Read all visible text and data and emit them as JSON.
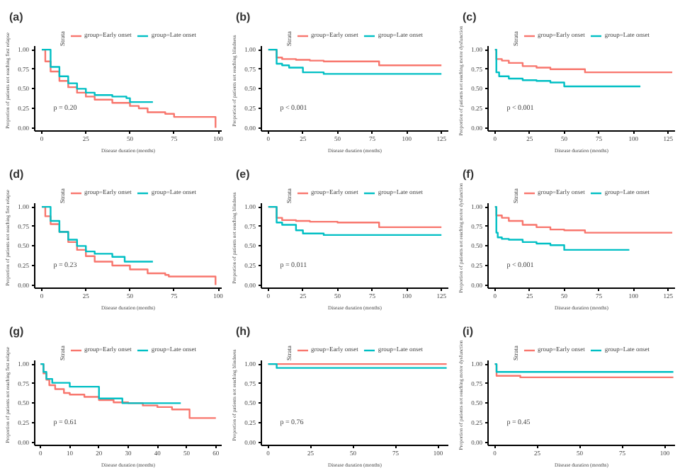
{
  "chart_data": [
    {
      "type": "step",
      "title": "(a)",
      "xlabel": "Disease duration (months)",
      "ylabel": "Proportion of patients not reaching first relapse",
      "legend_title": "Strata",
      "legend": "top",
      "grid": false,
      "line_style": "solid",
      "annotations": [
        "p = 0.20"
      ],
      "xlim": [
        -4,
        102
      ],
      "xticks": [
        0,
        25,
        50,
        75,
        100
      ],
      "ylim": [
        -0.04,
        1.04
      ],
      "yticks": [
        {
          "value": 0,
          "label": "0.00"
        },
        {
          "value": 0.25,
          "label": "0.25"
        },
        {
          "value": 0.5,
          "label": "0.50"
        },
        {
          "value": 0.75,
          "label": "0.75"
        },
        {
          "value": 1,
          "label": "1.00"
        }
      ],
      "series": [
        {
          "name": "group=Early onset",
          "color": "#f8766d",
          "x": [
            0,
            2,
            5,
            10,
            15,
            20,
            25,
            30,
            40,
            50,
            55,
            60,
            70,
            75,
            98,
            98.5
          ],
          "values": [
            1,
            0.85,
            0.72,
            0.6,
            0.52,
            0.45,
            0.4,
            0.36,
            0.32,
            0.28,
            0.25,
            0.2,
            0.18,
            0.14,
            0.14,
            0
          ]
        },
        {
          "name": "group=Late onset",
          "color": "#00bfc4",
          "x": [
            0,
            5,
            10,
            15,
            20,
            25,
            30,
            40,
            48,
            50,
            63
          ],
          "values": [
            1,
            0.78,
            0.66,
            0.57,
            0.5,
            0.45,
            0.42,
            0.4,
            0.38,
            0.33,
            0.33
          ]
        }
      ]
    },
    {
      "type": "step",
      "title": "(b)",
      "xlabel": "Disease duration (months)",
      "ylabel": "Proportion of patients not reaching blindness",
      "legend_title": "Strata",
      "legend": "top",
      "grid": false,
      "line_style": "solid",
      "annotations": [
        "p < 0.001"
      ],
      "xlim": [
        -5,
        130
      ],
      "xticks": [
        0,
        25,
        50,
        75,
        100,
        125
      ],
      "ylim": [
        -0.04,
        1.04
      ],
      "yticks": [
        {
          "value": 0,
          "label": "0.00"
        },
        {
          "value": 0.25,
          "label": "0.25"
        },
        {
          "value": 0.5,
          "label": "0.50"
        },
        {
          "value": 0.75,
          "label": "0.75"
        },
        {
          "value": 1,
          "label": "1.00"
        }
      ],
      "series": [
        {
          "name": "group=Early onset",
          "color": "#f8766d",
          "x": [
            0,
            6,
            10,
            20,
            30,
            40,
            60,
            80,
            125
          ],
          "values": [
            1,
            0.9,
            0.88,
            0.87,
            0.86,
            0.85,
            0.85,
            0.8,
            0.8
          ]
        },
        {
          "name": "group=Late onset",
          "color": "#00bfc4",
          "x": [
            0,
            6,
            10,
            15,
            25,
            40,
            125
          ],
          "values": [
            1,
            0.82,
            0.8,
            0.77,
            0.71,
            0.69,
            0.69
          ]
        }
      ]
    },
    {
      "type": "step",
      "title": "(c)",
      "xlabel": "Disease duration (months)",
      "ylabel": "Proportion of patients not reaching motor dysfunction",
      "legend_title": "Strata",
      "legend": "top",
      "grid": false,
      "line_style": "solid",
      "annotations": [
        "p < 0.001"
      ],
      "xlim": [
        -5,
        130
      ],
      "xticks": [
        0,
        25,
        50,
        75,
        100,
        125
      ],
      "ylim": [
        -0.04,
        1.04
      ],
      "yticks": [
        {
          "value": 0,
          "label": "0.00"
        },
        {
          "value": 0.25,
          "label": "0.25"
        },
        {
          "value": 0.5,
          "label": "0.50"
        },
        {
          "value": 0.75,
          "label": "0.75"
        },
        {
          "value": 1,
          "label": "1.00"
        }
      ],
      "series": [
        {
          "name": "group=Early onset",
          "color": "#f8766d",
          "x": [
            0,
            1,
            5,
            10,
            20,
            30,
            40,
            50,
            65,
            128
          ],
          "values": [
            1,
            0.88,
            0.86,
            0.83,
            0.79,
            0.77,
            0.75,
            0.75,
            0.71,
            0.71
          ]
        },
        {
          "name": "group=Late onset",
          "color": "#00bfc4",
          "x": [
            0,
            1,
            3,
            10,
            20,
            30,
            40,
            50,
            105
          ],
          "values": [
            1,
            0.71,
            0.66,
            0.63,
            0.61,
            0.6,
            0.58,
            0.53,
            0.53
          ]
        }
      ]
    },
    {
      "type": "step",
      "title": "(d)",
      "xlabel": "Disease duration (months)",
      "ylabel": "Proportion of patients not reaching first relapse",
      "legend_title": "Strata",
      "legend": "top",
      "grid": false,
      "line_style": "solid",
      "annotations": [
        "p = 0.23"
      ],
      "xlim": [
        -4,
        102
      ],
      "xticks": [
        0,
        25,
        50,
        75,
        100
      ],
      "ylim": [
        -0.04,
        1.04
      ],
      "yticks": [
        {
          "value": 0,
          "label": "0.00"
        },
        {
          "value": 0.25,
          "label": "0.25"
        },
        {
          "value": 0.5,
          "label": "0.50"
        },
        {
          "value": 0.75,
          "label": "0.75"
        },
        {
          "value": 1,
          "label": "1.00"
        }
      ],
      "series": [
        {
          "name": "group=Early onset",
          "color": "#f8766d",
          "x": [
            0,
            2,
            5,
            10,
            15,
            20,
            25,
            30,
            40,
            50,
            60,
            70,
            72,
            98,
            98.5
          ],
          "values": [
            1,
            0.88,
            0.78,
            0.68,
            0.55,
            0.45,
            0.37,
            0.3,
            0.25,
            0.2,
            0.15,
            0.13,
            0.11,
            0.11,
            0
          ]
        },
        {
          "name": "group=Late onset",
          "color": "#00bfc4",
          "x": [
            0,
            5,
            10,
            15,
            20,
            25,
            30,
            40,
            47,
            63
          ],
          "values": [
            1,
            0.82,
            0.68,
            0.58,
            0.5,
            0.43,
            0.4,
            0.36,
            0.3,
            0.3
          ]
        }
      ]
    },
    {
      "type": "step",
      "title": "(e)",
      "xlabel": "Disease duration (months)",
      "ylabel": "Proportion of patients not reaching blindness",
      "legend_title": "Strata",
      "legend": "top",
      "grid": false,
      "line_style": "solid",
      "annotations": [
        "p = 0.011"
      ],
      "xlim": [
        -5,
        130
      ],
      "xticks": [
        0,
        25,
        50,
        75,
        100,
        125
      ],
      "ylim": [
        -0.04,
        1.04
      ],
      "yticks": [
        {
          "value": 0,
          "label": "0.00"
        },
        {
          "value": 0.25,
          "label": "0.25"
        },
        {
          "value": 0.5,
          "label": "0.50"
        },
        {
          "value": 0.75,
          "label": "0.75"
        },
        {
          "value": 1,
          "label": "1.00"
        }
      ],
      "series": [
        {
          "name": "group=Early onset",
          "color": "#f8766d",
          "x": [
            0,
            6,
            10,
            20,
            30,
            50,
            80,
            125
          ],
          "values": [
            1,
            0.86,
            0.83,
            0.82,
            0.81,
            0.8,
            0.74,
            0.74
          ]
        },
        {
          "name": "group=Late onset",
          "color": "#00bfc4",
          "x": [
            0,
            6,
            10,
            20,
            25,
            40,
            125
          ],
          "values": [
            1,
            0.8,
            0.77,
            0.7,
            0.66,
            0.64,
            0.64
          ]
        }
      ]
    },
    {
      "type": "step",
      "title": "(f)",
      "xlabel": "Disease duration (months)",
      "ylabel": "Proportion of patients not reaching motor dysfunction",
      "legend_title": "Strata",
      "legend": "top",
      "grid": false,
      "line_style": "solid",
      "annotations": [
        "p < 0.001"
      ],
      "xlim": [
        -5,
        130
      ],
      "xticks": [
        0,
        25,
        50,
        75,
        100,
        125
      ],
      "ylim": [
        -0.04,
        1.04
      ],
      "yticks": [
        {
          "value": 0,
          "label": "0.00"
        },
        {
          "value": 0.25,
          "label": "0.25"
        },
        {
          "value": 0.5,
          "label": "0.50"
        },
        {
          "value": 0.75,
          "label": "0.75"
        },
        {
          "value": 1,
          "label": "1.00"
        }
      ],
      "series": [
        {
          "name": "group=Early onset",
          "color": "#f8766d",
          "x": [
            0,
            1,
            5,
            10,
            20,
            30,
            40,
            50,
            65,
            128
          ],
          "values": [
            1,
            0.89,
            0.86,
            0.82,
            0.77,
            0.74,
            0.71,
            0.7,
            0.67,
            0.67
          ]
        },
        {
          "name": "group=Late onset",
          "color": "#00bfc4",
          "x": [
            0,
            1,
            2,
            5,
            10,
            20,
            30,
            40,
            50,
            97
          ],
          "values": [
            1,
            0.67,
            0.61,
            0.59,
            0.58,
            0.55,
            0.53,
            0.51,
            0.45,
            0.45
          ]
        }
      ]
    },
    {
      "type": "step",
      "title": "(g)",
      "xlabel": "Disease duration (months)",
      "ylabel": "Proportion of patients not reaching first relapse",
      "legend_title": "Strata",
      "legend": "top",
      "grid": false,
      "line_style": "solid",
      "annotations": [
        "p = 0.61"
      ],
      "xlim": [
        -2,
        62
      ],
      "xticks": [
        0,
        10,
        20,
        30,
        40,
        50,
        60
      ],
      "ylim": [
        -0.04,
        1.04
      ],
      "yticks": [
        {
          "value": 0,
          "label": "0.00"
        },
        {
          "value": 0.25,
          "label": "0.25"
        },
        {
          "value": 0.5,
          "label": "0.50"
        },
        {
          "value": 0.75,
          "label": "0.75"
        },
        {
          "value": 1,
          "label": "1.00"
        }
      ],
      "series": [
        {
          "name": "group=Early onset",
          "color": "#f8766d",
          "x": [
            0,
            1,
            2,
            3,
            5,
            8,
            10,
            15,
            20,
            25,
            30,
            35,
            40,
            45,
            51,
            60
          ],
          "values": [
            1,
            0.88,
            0.8,
            0.73,
            0.68,
            0.63,
            0.61,
            0.58,
            0.54,
            0.51,
            0.5,
            0.47,
            0.45,
            0.42,
            0.31,
            0.31
          ]
        },
        {
          "name": "group=Late onset",
          "color": "#00bfc4",
          "x": [
            0,
            1,
            2,
            4,
            10,
            20,
            28,
            48
          ],
          "values": [
            1,
            0.9,
            0.81,
            0.76,
            0.71,
            0.56,
            0.5,
            0.5
          ]
        }
      ]
    },
    {
      "type": "step",
      "title": "(h)",
      "xlabel": "Disease duration (months)",
      "ylabel": "Proportion of patients not reaching blindness",
      "legend_title": "Strata",
      "legend": "top",
      "grid": false,
      "line_style": "solid",
      "annotations": [
        "p = 0.76"
      ],
      "xlim": [
        -4,
        106
      ],
      "xticks": [
        0,
        25,
        50,
        75,
        100
      ],
      "ylim": [
        -0.04,
        1.04
      ],
      "yticks": [
        {
          "value": 0,
          "label": "0.00"
        },
        {
          "value": 0.25,
          "label": "0.25"
        },
        {
          "value": 0.5,
          "label": "0.50"
        },
        {
          "value": 0.75,
          "label": "0.75"
        },
        {
          "value": 1,
          "label": "1.00"
        }
      ],
      "series": [
        {
          "name": "group=Early onset",
          "color": "#f8766d",
          "x": [
            0,
            105
          ],
          "values": [
            1,
            1
          ]
        },
        {
          "name": "group=Late onset",
          "color": "#00bfc4",
          "x": [
            0,
            5,
            105
          ],
          "values": [
            1,
            0.95,
            0.95
          ]
        }
      ]
    },
    {
      "type": "step",
      "title": "(i)",
      "xlabel": "Disease duration (months)",
      "ylabel": "Proportion of patients not reaching motor dysfunction",
      "legend_title": "Strata",
      "legend": "top",
      "grid": false,
      "line_style": "solid",
      "annotations": [
        "p = 0.45"
      ],
      "xlim": [
        -4,
        106
      ],
      "xticks": [
        0,
        25,
        50,
        75,
        100
      ],
      "ylim": [
        -0.04,
        1.04
      ],
      "yticks": [
        {
          "value": 0,
          "label": "0.00"
        },
        {
          "value": 0.25,
          "label": "0.25"
        },
        {
          "value": 0.5,
          "label": "0.50"
        },
        {
          "value": 0.75,
          "label": "0.75"
        },
        {
          "value": 1,
          "label": "1.00"
        }
      ],
      "series": [
        {
          "name": "group=Early onset",
          "color": "#f8766d",
          "x": [
            0,
            1,
            15,
            105
          ],
          "values": [
            1,
            0.85,
            0.83,
            0.83
          ]
        },
        {
          "name": "group=Late onset",
          "color": "#00bfc4",
          "x": [
            0,
            1,
            105
          ],
          "values": [
            1,
            0.9,
            0.9
          ]
        }
      ]
    }
  ]
}
